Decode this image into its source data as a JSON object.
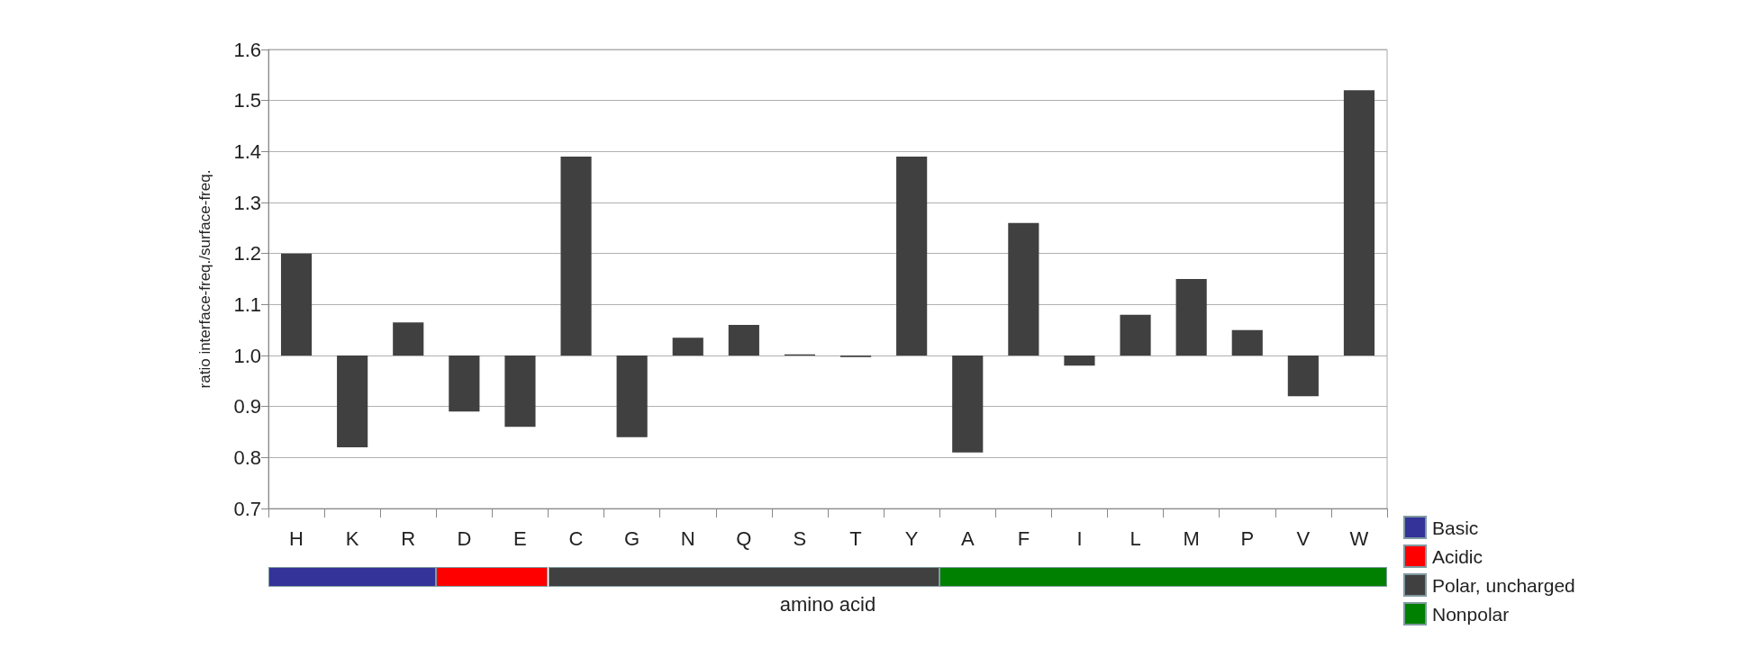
{
  "chart_data": {
    "type": "bar",
    "xlabel": "amino acid",
    "ylabel": "ratio interface-freq./surface-freq.",
    "categories": [
      "H",
      "K",
      "R",
      "D",
      "E",
      "C",
      "G",
      "N",
      "Q",
      "S",
      "T",
      "Y",
      "A",
      "F",
      "I",
      "L",
      "M",
      "P",
      "V",
      "W"
    ],
    "base": [
      1,
      1,
      1,
      1,
      1,
      1,
      1,
      1,
      1,
      1,
      1,
      1,
      1,
      1,
      1,
      1,
      1,
      1,
      1,
      1
    ],
    "values": [
      0.2,
      -0.18,
      0.065,
      -0.11,
      -0.14,
      0.39,
      -0.16,
      0.035,
      0.06,
      0.002,
      -0.003,
      0.39,
      -0.19,
      0.26,
      -0.02,
      0.08,
      0.15,
      0.05,
      -0.08,
      0.52
    ],
    "color": "#404040",
    "ylim": [
      0.7,
      1.6
    ],
    "yticks": [
      {
        "value": 0.7,
        "label": "0.7"
      },
      {
        "value": 0.8,
        "label": "0.8"
      },
      {
        "value": 0.9,
        "label": "0.9"
      },
      {
        "value": 1,
        "label": "1.0"
      },
      {
        "value": 1.1,
        "label": "1.1"
      },
      {
        "value": 1.2,
        "label": "1.2"
      },
      {
        "value": 1.3,
        "label": "1.3"
      },
      {
        "value": 1.4,
        "label": "1.4"
      },
      {
        "value": 1.5,
        "label": "1.5"
      },
      {
        "value": 1.6,
        "label": "1.6"
      }
    ],
    "grid": "y",
    "annotations": [
      "Basic",
      "Acidic",
      "Polar, uncharged",
      "Nonpolar"
    ]
  }
}
